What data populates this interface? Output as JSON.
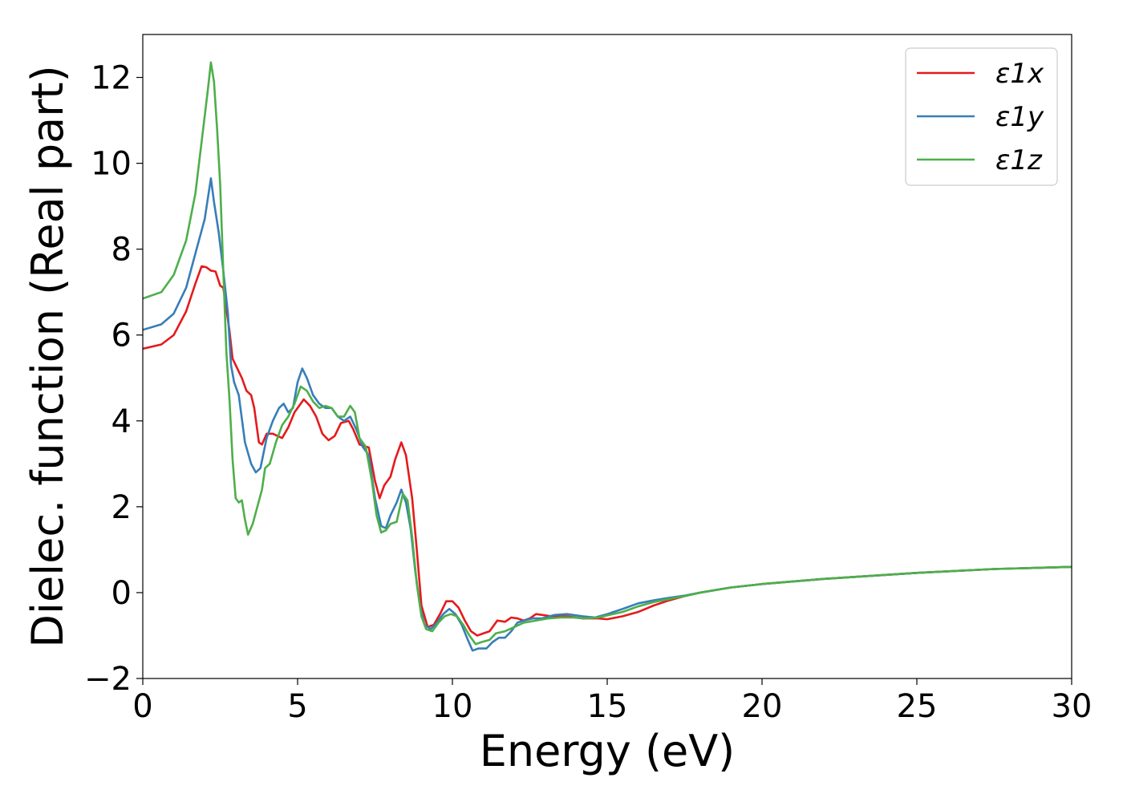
{
  "chart_data": {
    "type": "line",
    "xlabel": "Energy (eV)",
    "ylabel": "Dielec. function (Real part)",
    "xlim": [
      0,
      30
    ],
    "ylim": [
      -2,
      13
    ],
    "xticks": [
      0,
      5,
      10,
      15,
      20,
      25,
      30
    ],
    "yticks": [
      -2,
      0,
      2,
      4,
      6,
      8,
      10,
      12
    ],
    "xtick_labels": [
      "0",
      "5",
      "10",
      "15",
      "20",
      "25",
      "30"
    ],
    "ytick_labels": [
      "−2",
      "0",
      "2",
      "4",
      "6",
      "8",
      "10",
      "12"
    ],
    "grid": false,
    "legend_position": "top-right",
    "series": [
      {
        "name": "ε1x",
        "color": "#e41a1c",
        "points": [
          [
            0,
            5.68
          ],
          [
            0.6,
            5.78
          ],
          [
            1.0,
            6.0
          ],
          [
            1.4,
            6.55
          ],
          [
            1.7,
            7.2
          ],
          [
            1.9,
            7.6
          ],
          [
            2.05,
            7.58
          ],
          [
            2.2,
            7.5
          ],
          [
            2.35,
            7.48
          ],
          [
            2.5,
            7.15
          ],
          [
            2.6,
            7.1
          ],
          [
            2.7,
            6.6
          ],
          [
            2.8,
            6.1
          ],
          [
            2.9,
            5.45
          ],
          [
            3.0,
            5.3
          ],
          [
            3.2,
            5.0
          ],
          [
            3.35,
            4.7
          ],
          [
            3.5,
            4.6
          ],
          [
            3.6,
            4.3
          ],
          [
            3.75,
            3.5
          ],
          [
            3.85,
            3.45
          ],
          [
            4.0,
            3.7
          ],
          [
            4.2,
            3.7
          ],
          [
            4.5,
            3.6
          ],
          [
            4.7,
            3.85
          ],
          [
            4.9,
            4.2
          ],
          [
            5.2,
            4.5
          ],
          [
            5.4,
            4.35
          ],
          [
            5.6,
            4.1
          ],
          [
            5.8,
            3.7
          ],
          [
            6.0,
            3.55
          ],
          [
            6.2,
            3.65
          ],
          [
            6.4,
            3.95
          ],
          [
            6.65,
            4.0
          ],
          [
            6.8,
            3.8
          ],
          [
            7.0,
            3.45
          ],
          [
            7.3,
            3.38
          ],
          [
            7.5,
            2.6
          ],
          [
            7.65,
            2.2
          ],
          [
            7.8,
            2.5
          ],
          [
            8.0,
            2.7
          ],
          [
            8.15,
            3.1
          ],
          [
            8.35,
            3.5
          ],
          [
            8.5,
            3.2
          ],
          [
            8.7,
            2.2
          ],
          [
            8.85,
            1.0
          ],
          [
            9.0,
            -0.3
          ],
          [
            9.2,
            -0.8
          ],
          [
            9.4,
            -0.75
          ],
          [
            9.6,
            -0.5
          ],
          [
            9.8,
            -0.2
          ],
          [
            10.0,
            -0.2
          ],
          [
            10.2,
            -0.35
          ],
          [
            10.4,
            -0.65
          ],
          [
            10.6,
            -0.9
          ],
          [
            10.8,
            -1.0
          ],
          [
            11.0,
            -0.95
          ],
          [
            11.2,
            -0.9
          ],
          [
            11.45,
            -0.65
          ],
          [
            11.7,
            -0.68
          ],
          [
            11.9,
            -0.58
          ],
          [
            12.1,
            -0.6
          ],
          [
            12.3,
            -0.65
          ],
          [
            12.5,
            -0.6
          ],
          [
            12.7,
            -0.5
          ],
          [
            13.2,
            -0.55
          ],
          [
            13.7,
            -0.55
          ],
          [
            14.2,
            -0.6
          ],
          [
            14.7,
            -0.6
          ],
          [
            15.0,
            -0.62
          ],
          [
            15.5,
            -0.55
          ],
          [
            16.0,
            -0.45
          ],
          [
            16.5,
            -0.3
          ],
          [
            17.0,
            -0.18
          ],
          [
            17.5,
            -0.08
          ],
          [
            18.0,
            0.0
          ],
          [
            19.0,
            0.12
          ],
          [
            20.0,
            0.2
          ],
          [
            22.0,
            0.32
          ],
          [
            25.0,
            0.46
          ],
          [
            27.5,
            0.55
          ],
          [
            30.0,
            0.6
          ]
        ]
      },
      {
        "name": "ε1y",
        "color": "#377eb8",
        "points": [
          [
            0,
            6.12
          ],
          [
            0.6,
            6.25
          ],
          [
            1.0,
            6.5
          ],
          [
            1.4,
            7.1
          ],
          [
            1.7,
            7.9
          ],
          [
            2.0,
            8.7
          ],
          [
            2.2,
            9.65
          ],
          [
            2.3,
            9.1
          ],
          [
            2.45,
            8.4
          ],
          [
            2.6,
            7.5
          ],
          [
            2.75,
            6.5
          ],
          [
            2.85,
            5.3
          ],
          [
            2.95,
            4.9
          ],
          [
            3.1,
            4.6
          ],
          [
            3.3,
            3.5
          ],
          [
            3.5,
            3.0
          ],
          [
            3.65,
            2.8
          ],
          [
            3.8,
            2.9
          ],
          [
            4.0,
            3.6
          ],
          [
            4.2,
            4.0
          ],
          [
            4.4,
            4.3
          ],
          [
            4.55,
            4.4
          ],
          [
            4.7,
            4.2
          ],
          [
            4.85,
            4.3
          ],
          [
            5.0,
            4.9
          ],
          [
            5.15,
            5.22
          ],
          [
            5.3,
            5.0
          ],
          [
            5.5,
            4.6
          ],
          [
            5.7,
            4.4
          ],
          [
            5.9,
            4.3
          ],
          [
            6.1,
            4.3
          ],
          [
            6.3,
            4.1
          ],
          [
            6.5,
            4.0
          ],
          [
            6.7,
            4.1
          ],
          [
            6.9,
            3.8
          ],
          [
            7.1,
            3.4
          ],
          [
            7.3,
            3.2
          ],
          [
            7.5,
            2.2
          ],
          [
            7.7,
            1.55
          ],
          [
            7.85,
            1.5
          ],
          [
            8.0,
            1.8
          ],
          [
            8.2,
            2.1
          ],
          [
            8.35,
            2.4
          ],
          [
            8.5,
            2.1
          ],
          [
            8.65,
            1.5
          ],
          [
            8.8,
            0.5
          ],
          [
            8.95,
            -0.3
          ],
          [
            9.1,
            -0.75
          ],
          [
            9.3,
            -0.85
          ],
          [
            9.5,
            -0.7
          ],
          [
            9.7,
            -0.5
          ],
          [
            9.9,
            -0.38
          ],
          [
            10.1,
            -0.5
          ],
          [
            10.3,
            -0.75
          ],
          [
            10.5,
            -1.1
          ],
          [
            10.65,
            -1.35
          ],
          [
            10.85,
            -1.3
          ],
          [
            11.1,
            -1.3
          ],
          [
            11.3,
            -1.15
          ],
          [
            11.5,
            -1.05
          ],
          [
            11.7,
            -1.05
          ],
          [
            11.9,
            -0.9
          ],
          [
            12.1,
            -0.7
          ],
          [
            12.3,
            -0.65
          ],
          [
            12.6,
            -0.6
          ],
          [
            12.9,
            -0.6
          ],
          [
            13.3,
            -0.52
          ],
          [
            13.7,
            -0.5
          ],
          [
            14.2,
            -0.55
          ],
          [
            14.6,
            -0.58
          ],
          [
            15.0,
            -0.5
          ],
          [
            15.5,
            -0.38
          ],
          [
            16.0,
            -0.25
          ],
          [
            16.5,
            -0.18
          ],
          [
            17.0,
            -0.12
          ],
          [
            17.5,
            -0.07
          ],
          [
            18.0,
            0.0
          ],
          [
            19.0,
            0.12
          ],
          [
            20.0,
            0.2
          ],
          [
            22.0,
            0.32
          ],
          [
            25.0,
            0.46
          ],
          [
            27.5,
            0.55
          ],
          [
            30.0,
            0.6
          ]
        ]
      },
      {
        "name": "ε1z",
        "color": "#4daf4a",
        "points": [
          [
            0,
            6.85
          ],
          [
            0.6,
            7.0
          ],
          [
            1.0,
            7.4
          ],
          [
            1.4,
            8.2
          ],
          [
            1.7,
            9.3
          ],
          [
            1.95,
            10.8
          ],
          [
            2.1,
            11.7
          ],
          [
            2.2,
            12.35
          ],
          [
            2.3,
            11.9
          ],
          [
            2.4,
            10.8
          ],
          [
            2.5,
            9.5
          ],
          [
            2.6,
            7.5
          ],
          [
            2.7,
            5.6
          ],
          [
            2.8,
            4.5
          ],
          [
            2.9,
            3.1
          ],
          [
            3.0,
            2.2
          ],
          [
            3.1,
            2.1
          ],
          [
            3.2,
            2.15
          ],
          [
            3.3,
            1.7
          ],
          [
            3.4,
            1.35
          ],
          [
            3.55,
            1.6
          ],
          [
            3.7,
            2.0
          ],
          [
            3.85,
            2.4
          ],
          [
            3.95,
            2.9
          ],
          [
            4.1,
            3.0
          ],
          [
            4.3,
            3.5
          ],
          [
            4.5,
            3.9
          ],
          [
            4.7,
            4.1
          ],
          [
            4.9,
            4.4
          ],
          [
            5.1,
            4.8
          ],
          [
            5.3,
            4.7
          ],
          [
            5.5,
            4.45
          ],
          [
            5.7,
            4.3
          ],
          [
            5.9,
            4.35
          ],
          [
            6.1,
            4.3
          ],
          [
            6.3,
            4.1
          ],
          [
            6.5,
            4.1
          ],
          [
            6.7,
            4.35
          ],
          [
            6.85,
            4.2
          ],
          [
            7.0,
            3.6
          ],
          [
            7.2,
            3.4
          ],
          [
            7.4,
            2.6
          ],
          [
            7.55,
            1.8
          ],
          [
            7.7,
            1.4
          ],
          [
            7.85,
            1.45
          ],
          [
            8.0,
            1.6
          ],
          [
            8.2,
            1.65
          ],
          [
            8.4,
            2.3
          ],
          [
            8.55,
            2.15
          ],
          [
            8.7,
            1.3
          ],
          [
            8.85,
            0.2
          ],
          [
            9.0,
            -0.55
          ],
          [
            9.15,
            -0.85
          ],
          [
            9.35,
            -0.9
          ],
          [
            9.55,
            -0.7
          ],
          [
            9.75,
            -0.55
          ],
          [
            9.95,
            -0.5
          ],
          [
            10.15,
            -0.55
          ],
          [
            10.35,
            -0.75
          ],
          [
            10.55,
            -1.0
          ],
          [
            10.75,
            -1.2
          ],
          [
            10.95,
            -1.15
          ],
          [
            11.2,
            -1.1
          ],
          [
            11.4,
            -0.95
          ],
          [
            11.7,
            -0.9
          ],
          [
            12.0,
            -0.8
          ],
          [
            12.3,
            -0.7
          ],
          [
            12.7,
            -0.65
          ],
          [
            13.1,
            -0.6
          ],
          [
            13.5,
            -0.58
          ],
          [
            13.9,
            -0.58
          ],
          [
            14.3,
            -0.6
          ],
          [
            14.7,
            -0.58
          ],
          [
            15.0,
            -0.53
          ],
          [
            15.5,
            -0.45
          ],
          [
            16.0,
            -0.32
          ],
          [
            16.5,
            -0.22
          ],
          [
            17.0,
            -0.15
          ],
          [
            17.5,
            -0.08
          ],
          [
            18.0,
            0.0
          ],
          [
            19.0,
            0.12
          ],
          [
            20.0,
            0.2
          ],
          [
            22.0,
            0.32
          ],
          [
            25.0,
            0.46
          ],
          [
            27.5,
            0.55
          ],
          [
            30.0,
            0.6
          ]
        ]
      }
    ]
  }
}
